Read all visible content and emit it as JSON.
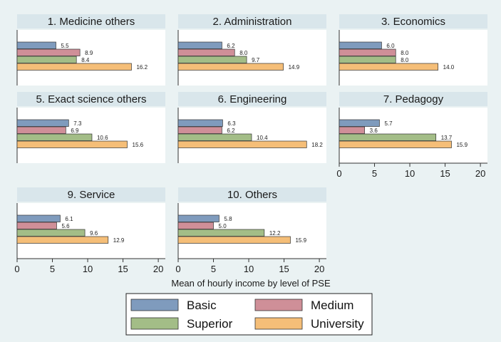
{
  "chart_data": {
    "type": "bar",
    "orientation": "horizontal",
    "xlabel": "Mean of hourly income by level of PSE",
    "xlim": [
      0,
      21
    ],
    "xticks": [
      0,
      5,
      10,
      15,
      20
    ],
    "series": [
      {
        "name": "Basic",
        "color": "#7f9bbd"
      },
      {
        "name": "Medium",
        "color": "#cf8f98"
      },
      {
        "name": "Superior",
        "color": "#a3bd87"
      },
      {
        "name": "University",
        "color": "#f5be78"
      }
    ],
    "panels": [
      {
        "title": "1. Medicine others",
        "values": [
          5.5,
          8.9,
          8.4,
          16.2
        ],
        "labels": [
          "5.5",
          "8.9",
          "8.4",
          "16.2"
        ]
      },
      {
        "title": "2. Administration",
        "values": [
          6.2,
          8.0,
          9.7,
          14.9
        ],
        "labels": [
          "6.2",
          "8.0",
          "9.7",
          "14.9"
        ]
      },
      {
        "title": "3. Economics",
        "values": [
          6.0,
          8.0,
          8.0,
          14.0
        ],
        "labels": [
          "6.0",
          "8.0",
          "8.0",
          "14.0"
        ]
      },
      {
        "title": "5. Exact science others",
        "values": [
          7.3,
          6.9,
          10.6,
          15.6
        ],
        "labels": [
          "7.3",
          "6.9",
          "10.6",
          "15.6"
        ]
      },
      {
        "title": "6. Engineering",
        "values": [
          6.3,
          6.2,
          10.4,
          18.2
        ],
        "labels": [
          "6.3",
          "6.2",
          "10.4",
          "18.2"
        ]
      },
      {
        "title": "7. Pedagogy",
        "values": [
          5.7,
          3.6,
          13.7,
          15.9
        ],
        "labels": [
          "5.7",
          "3.6",
          "13.7",
          "15.9"
        ]
      },
      {
        "title": "9. Service",
        "values": [
          6.1,
          5.6,
          9.6,
          12.9
        ],
        "labels": [
          "6.1",
          "5.6",
          "9.6",
          "12.9"
        ]
      },
      {
        "title": "10. Others",
        "values": [
          5.8,
          5.0,
          12.2,
          15.9
        ],
        "labels": [
          "5.8",
          "5.0",
          "12.2",
          "15.9"
        ]
      }
    ]
  }
}
